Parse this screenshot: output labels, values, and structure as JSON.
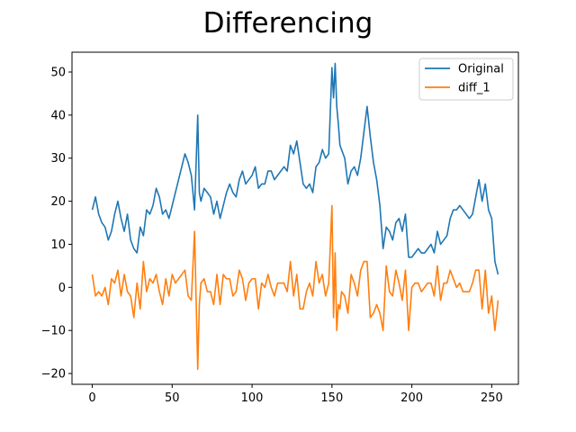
{
  "chart_data": {
    "type": "line",
    "title": "Differencing",
    "xlabel": "",
    "ylabel": "",
    "xlim": [
      -12.7,
      266.7
    ],
    "ylim": [
      -22.5,
      54.6
    ],
    "xticks": [
      0,
      50,
      100,
      150,
      200,
      250
    ],
    "yticks": [
      -20,
      -10,
      0,
      10,
      20,
      30,
      40,
      50
    ],
    "legend_position": "top-right",
    "colors": {
      "Original": "#1f77b4",
      "diff_1": "#ff7f0e"
    },
    "series": [
      {
        "name": "Original",
        "x": [
          0,
          2,
          4,
          6,
          8,
          10,
          12,
          14,
          16,
          18,
          20,
          22,
          24,
          26,
          28,
          30,
          32,
          34,
          36,
          38,
          40,
          42,
          44,
          46,
          48,
          50,
          52,
          54,
          56,
          58,
          60,
          62,
          64,
          66,
          67,
          68,
          70,
          72,
          74,
          76,
          78,
          80,
          82,
          84,
          86,
          88,
          90,
          92,
          94,
          96,
          98,
          100,
          102,
          104,
          106,
          108,
          110,
          112,
          114,
          116,
          118,
          120,
          122,
          124,
          126,
          128,
          130,
          132,
          134,
          136,
          138,
          140,
          142,
          144,
          146,
          148,
          150,
          151,
          152,
          153,
          154,
          155,
          156,
          158,
          160,
          162,
          164,
          166,
          168,
          170,
          172,
          174,
          176,
          178,
          180,
          182,
          184,
          186,
          188,
          190,
          192,
          194,
          196,
          198,
          200,
          202,
          204,
          206,
          208,
          210,
          212,
          214,
          216,
          218,
          220,
          222,
          224,
          226,
          228,
          230,
          232,
          234,
          236,
          238,
          240,
          242,
          244,
          246,
          248,
          250,
          252,
          254
        ],
        "values": [
          18,
          21,
          17,
          15,
          14,
          11,
          13,
          17,
          20,
          16,
          13,
          17,
          11,
          9,
          8,
          14,
          12,
          18,
          17,
          19,
          23,
          21,
          17,
          18,
          16,
          19,
          22,
          25,
          28,
          31,
          29,
          26,
          18,
          40,
          22,
          20,
          23,
          22,
          21,
          17,
          20,
          16,
          19,
          22,
          24,
          22,
          21,
          25,
          27,
          24,
          25,
          26,
          28,
          23,
          24,
          24,
          27,
          27,
          25,
          26,
          27,
          28,
          27,
          33,
          31,
          34,
          29,
          24,
          23,
          24,
          22,
          28,
          29,
          32,
          30,
          31,
          51,
          44,
          52,
          42,
          38,
          33,
          32,
          30,
          24,
          27,
          28,
          26,
          30,
          36,
          42,
          35,
          29,
          25,
          19,
          9,
          14,
          13,
          11,
          15,
          16,
          13,
          17,
          7,
          7,
          8,
          9,
          8,
          8,
          9,
          10,
          8,
          13,
          10,
          11,
          12,
          16,
          18,
          18,
          19,
          18,
          17,
          16,
          17,
          21,
          25,
          20,
          24,
          18,
          16,
          6,
          3
        ]
      },
      {
        "name": "diff_1",
        "x": [
          0,
          2,
          4,
          6,
          8,
          10,
          12,
          14,
          16,
          18,
          20,
          22,
          24,
          26,
          28,
          30,
          32,
          34,
          36,
          38,
          40,
          42,
          44,
          46,
          48,
          50,
          52,
          54,
          56,
          58,
          60,
          62,
          64,
          66,
          67,
          68,
          70,
          72,
          74,
          76,
          78,
          80,
          82,
          84,
          86,
          88,
          90,
          92,
          94,
          96,
          98,
          100,
          102,
          104,
          106,
          108,
          110,
          112,
          114,
          116,
          118,
          120,
          122,
          124,
          126,
          128,
          130,
          132,
          134,
          136,
          138,
          140,
          142,
          144,
          146,
          148,
          150,
          151,
          152,
          153,
          154,
          155,
          156,
          158,
          160,
          162,
          164,
          166,
          168,
          170,
          172,
          174,
          176,
          178,
          180,
          182,
          184,
          186,
          188,
          190,
          192,
          194,
          196,
          198,
          200,
          202,
          204,
          206,
          208,
          210,
          212,
          214,
          216,
          218,
          220,
          222,
          224,
          226,
          228,
          230,
          232,
          234,
          236,
          238,
          240,
          242,
          244,
          246,
          248,
          250,
          252,
          254
        ],
        "values": [
          3,
          -2,
          -1,
          -2,
          0,
          -4,
          2,
          1,
          4,
          -2,
          3,
          -1,
          -2,
          -7,
          1,
          -5,
          6,
          -1,
          2,
          1,
          3,
          -1,
          -4,
          2,
          -2,
          3,
          1,
          2,
          3,
          4,
          -2,
          -3,
          13,
          -19,
          -4,
          1,
          2,
          -1,
          -1,
          -4,
          3,
          -4,
          3,
          2,
          2,
          -2,
          -1,
          4,
          2,
          -3,
          1,
          2,
          2,
          -5,
          1,
          0,
          3,
          0,
          -2,
          1,
          1,
          1,
          -1,
          6,
          -2,
          3,
          -5,
          -5,
          -1,
          1,
          -2,
          6,
          1,
          3,
          -2,
          1,
          19,
          -7,
          8,
          -10,
          -4,
          -5,
          -1,
          -2,
          -6,
          3,
          1,
          -2,
          4,
          6,
          6,
          -7,
          -6,
          -4,
          -6,
          -10,
          5,
          -1,
          -2,
          4,
          1,
          -3,
          4,
          -10,
          0,
          1,
          1,
          -1,
          0,
          1,
          1,
          -2,
          5,
          -3,
          1,
          1,
          4,
          2,
          0,
          1,
          -1,
          -1,
          -1,
          1,
          4,
          4,
          -5,
          4,
          -6,
          -2,
          -10,
          -3
        ]
      }
    ]
  }
}
